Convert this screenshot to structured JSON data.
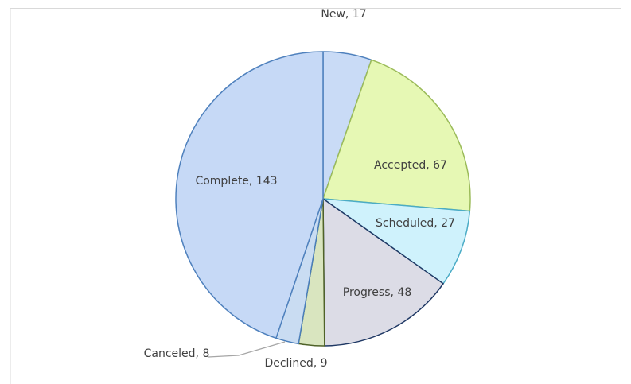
{
  "chart_data": {
    "type": "pie",
    "values": [
      17,
      67,
      27,
      48,
      9,
      8,
      143
    ],
    "value_labels": [
      "New, 17",
      "Accepted, 67",
      "Scheduled, 27",
      "Progress, 48",
      "Declined, 9",
      "Canceled, 8",
      "Complete, 143"
    ],
    "colors": [
      "#c9dbf6",
      "#e6f8b4",
      "#cff2fc",
      "#dcdce6",
      "#d9e5bf",
      "#c9dcf2",
      "#c6d9f6"
    ],
    "edge_colors": [
      "#4f81bd",
      "#9bbb59",
      "#4bacc6",
      "#1f3864",
      "#4f6228",
      "#4a7ebb",
      "#4f81bd"
    ]
  }
}
